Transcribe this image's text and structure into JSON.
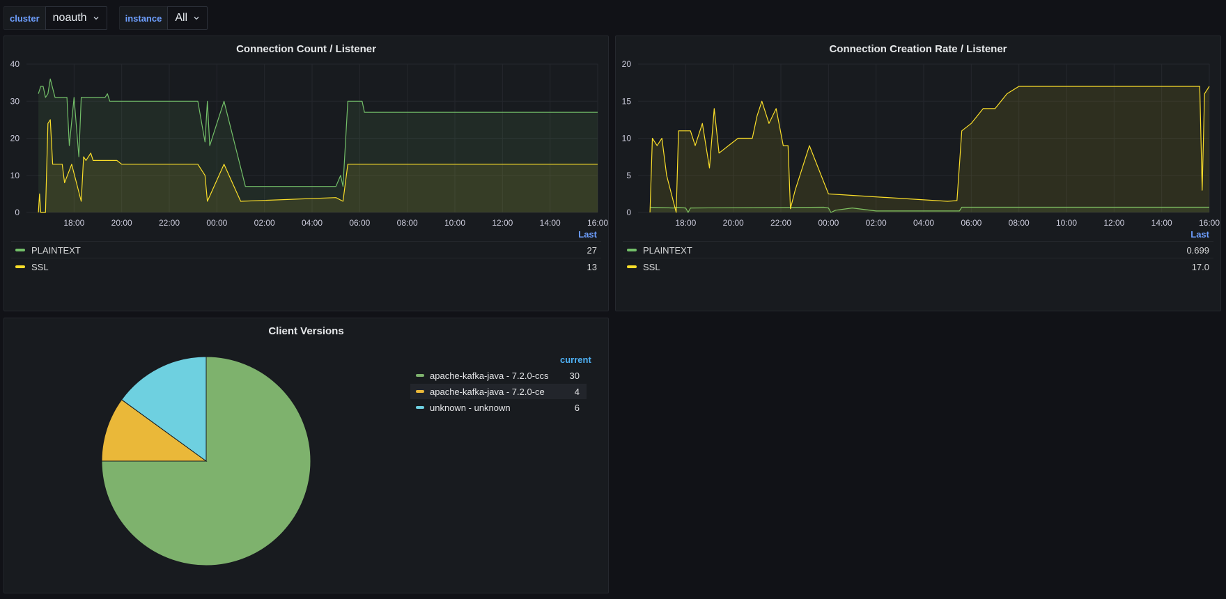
{
  "variables": [
    {
      "label": "cluster",
      "value": "noauth"
    },
    {
      "label": "instance",
      "value": "All"
    }
  ],
  "colors": {
    "green": "#73bf69",
    "yellow": "#fade2a",
    "pie_green": "#7eb26d",
    "pie_yellow": "#eab839",
    "pie_cyan": "#6ed0e0",
    "accent": "#6e9fff"
  },
  "panels": {
    "connection_count": {
      "title": "Connection Count / Listener",
      "legend_header": "Last",
      "legend": [
        {
          "name": "PLAINTEXT",
          "value": "27",
          "color": "#73bf69"
        },
        {
          "name": "SSL",
          "value": "13",
          "color": "#fade2a"
        }
      ]
    },
    "connection_rate": {
      "title": "Connection Creation Rate / Listener",
      "legend_header": "Last",
      "legend": [
        {
          "name": "PLAINTEXT",
          "value": "0.699",
          "color": "#73bf69"
        },
        {
          "name": "SSL",
          "value": "17.0",
          "color": "#fade2a"
        }
      ]
    },
    "client_versions": {
      "title": "Client Versions",
      "legend_header": "current",
      "legend": [
        {
          "name": "apache-kafka-java - 7.2.0-ccs",
          "value": "30",
          "color": "#7eb26d"
        },
        {
          "name": "apache-kafka-java - 7.2.0-ce",
          "value": "4",
          "color": "#eab839"
        },
        {
          "name": "unknown - unknown",
          "value": "6",
          "color": "#6ed0e0"
        }
      ]
    }
  },
  "chart_data": [
    {
      "type": "line",
      "title": "Connection Count / Listener",
      "x_ticks": [
        "18:00",
        "20:00",
        "22:00",
        "00:00",
        "02:00",
        "04:00",
        "06:00",
        "08:00",
        "10:00",
        "12:00",
        "14:00",
        "16:00"
      ],
      "y_ticks": [
        "0",
        "10",
        "20",
        "30",
        "40"
      ],
      "ylim": [
        0,
        40
      ],
      "x_unit": "hours since 16:00 previous day",
      "series": [
        {
          "name": "PLAINTEXT",
          "color": "#73bf69",
          "points": [
            [
              0.5,
              32
            ],
            [
              0.6,
              34
            ],
            [
              0.7,
              34
            ],
            [
              0.8,
              31
            ],
            [
              0.9,
              32
            ],
            [
              1.0,
              36
            ],
            [
              1.2,
              31
            ],
            [
              1.7,
              31
            ],
            [
              1.8,
              18
            ],
            [
              2.0,
              31
            ],
            [
              2.2,
              15
            ],
            [
              2.3,
              31
            ],
            [
              3.3,
              31
            ],
            [
              3.4,
              32
            ],
            [
              3.5,
              30
            ],
            [
              5.5,
              30
            ],
            [
              6.5,
              30
            ],
            [
              7.2,
              30
            ],
            [
              7.5,
              19
            ],
            [
              7.6,
              30
            ],
            [
              7.7,
              18
            ],
            [
              8.3,
              30
            ],
            [
              9.2,
              7
            ],
            [
              13.0,
              7
            ],
            [
              13.2,
              10
            ],
            [
              13.3,
              7
            ],
            [
              13.5,
              30
            ],
            [
              14.1,
              30
            ],
            [
              14.2,
              27
            ],
            [
              24.0,
              27
            ]
          ]
        },
        {
          "name": "SSL",
          "color": "#fade2a",
          "points": [
            [
              0.5,
              0
            ],
            [
              0.55,
              5
            ],
            [
              0.6,
              0
            ],
            [
              0.8,
              0
            ],
            [
              0.9,
              24
            ],
            [
              1.0,
              25
            ],
            [
              1.1,
              13
            ],
            [
              1.5,
              13
            ],
            [
              1.6,
              8
            ],
            [
              1.9,
              13
            ],
            [
              2.3,
              3
            ],
            [
              2.4,
              15
            ],
            [
              2.5,
              14
            ],
            [
              2.7,
              16
            ],
            [
              2.8,
              14
            ],
            [
              3.8,
              14
            ],
            [
              4.0,
              13
            ],
            [
              6.5,
              13
            ],
            [
              7.2,
              13
            ],
            [
              7.5,
              10
            ],
            [
              7.6,
              3
            ],
            [
              8.3,
              13
            ],
            [
              9.0,
              3
            ],
            [
              13.0,
              4
            ],
            [
              13.3,
              3
            ],
            [
              13.5,
              13
            ],
            [
              24.0,
              13
            ]
          ]
        }
      ]
    },
    {
      "type": "line",
      "title": "Connection Creation Rate / Listener",
      "x_ticks": [
        "18:00",
        "20:00",
        "22:00",
        "00:00",
        "02:00",
        "04:00",
        "06:00",
        "08:00",
        "10:00",
        "12:00",
        "14:00",
        "16:00"
      ],
      "y_ticks": [
        "0",
        "5",
        "10",
        "15",
        "20"
      ],
      "ylim": [
        0,
        20
      ],
      "x_unit": "hours since 16:00 previous day",
      "series": [
        {
          "name": "PLAINTEXT",
          "color": "#73bf69",
          "points": [
            [
              0.5,
              0.7
            ],
            [
              1.5,
              0.6
            ],
            [
              1.6,
              0.7
            ],
            [
              2.0,
              0.6
            ],
            [
              2.1,
              0
            ],
            [
              2.2,
              0.6
            ],
            [
              7.8,
              0.7
            ],
            [
              8.0,
              0.6
            ],
            [
              8.1,
              0
            ],
            [
              8.3,
              0.3
            ],
            [
              9.0,
              0.6
            ],
            [
              10.0,
              0.2
            ],
            [
              13.5,
              0.2
            ],
            [
              13.6,
              0.7
            ],
            [
              24.0,
              0.7
            ]
          ]
        },
        {
          "name": "SSL",
          "color": "#fade2a",
          "points": [
            [
              0.5,
              0
            ],
            [
              0.6,
              10
            ],
            [
              0.8,
              9
            ],
            [
              1.0,
              10
            ],
            [
              1.2,
              5
            ],
            [
              1.6,
              0
            ],
            [
              1.7,
              11
            ],
            [
              2.2,
              11
            ],
            [
              2.4,
              9
            ],
            [
              2.7,
              12
            ],
            [
              3.0,
              6
            ],
            [
              3.2,
              14
            ],
            [
              3.4,
              8
            ],
            [
              3.8,
              9
            ],
            [
              4.2,
              10
            ],
            [
              4.8,
              10
            ],
            [
              5.0,
              13
            ],
            [
              5.2,
              15
            ],
            [
              5.5,
              12
            ],
            [
              5.8,
              14
            ],
            [
              6.1,
              9
            ],
            [
              6.3,
              9
            ],
            [
              6.4,
              0.5
            ],
            [
              6.6,
              3
            ],
            [
              7.2,
              9
            ],
            [
              8.0,
              2.5
            ],
            [
              13.0,
              1.5
            ],
            [
              13.4,
              1.6
            ],
            [
              13.6,
              11
            ],
            [
              14.0,
              12
            ],
            [
              14.5,
              14
            ],
            [
              15.0,
              14
            ],
            [
              15.5,
              16
            ],
            [
              16.0,
              17
            ],
            [
              17.0,
              17
            ],
            [
              18.0,
              17
            ],
            [
              20.0,
              17
            ],
            [
              22.0,
              17
            ],
            [
              23.6,
              17
            ],
            [
              23.7,
              3
            ],
            [
              23.8,
              16
            ],
            [
              24.0,
              17
            ]
          ]
        }
      ]
    },
    {
      "type": "pie",
      "title": "Client Versions",
      "categories": [
        "apache-kafka-java - 7.2.0-ccs",
        "apache-kafka-java - 7.2.0-ce",
        "unknown - unknown"
      ],
      "values": [
        30,
        4,
        6
      ],
      "colors": [
        "#7eb26d",
        "#eab839",
        "#6ed0e0"
      ],
      "legend": "right"
    }
  ]
}
